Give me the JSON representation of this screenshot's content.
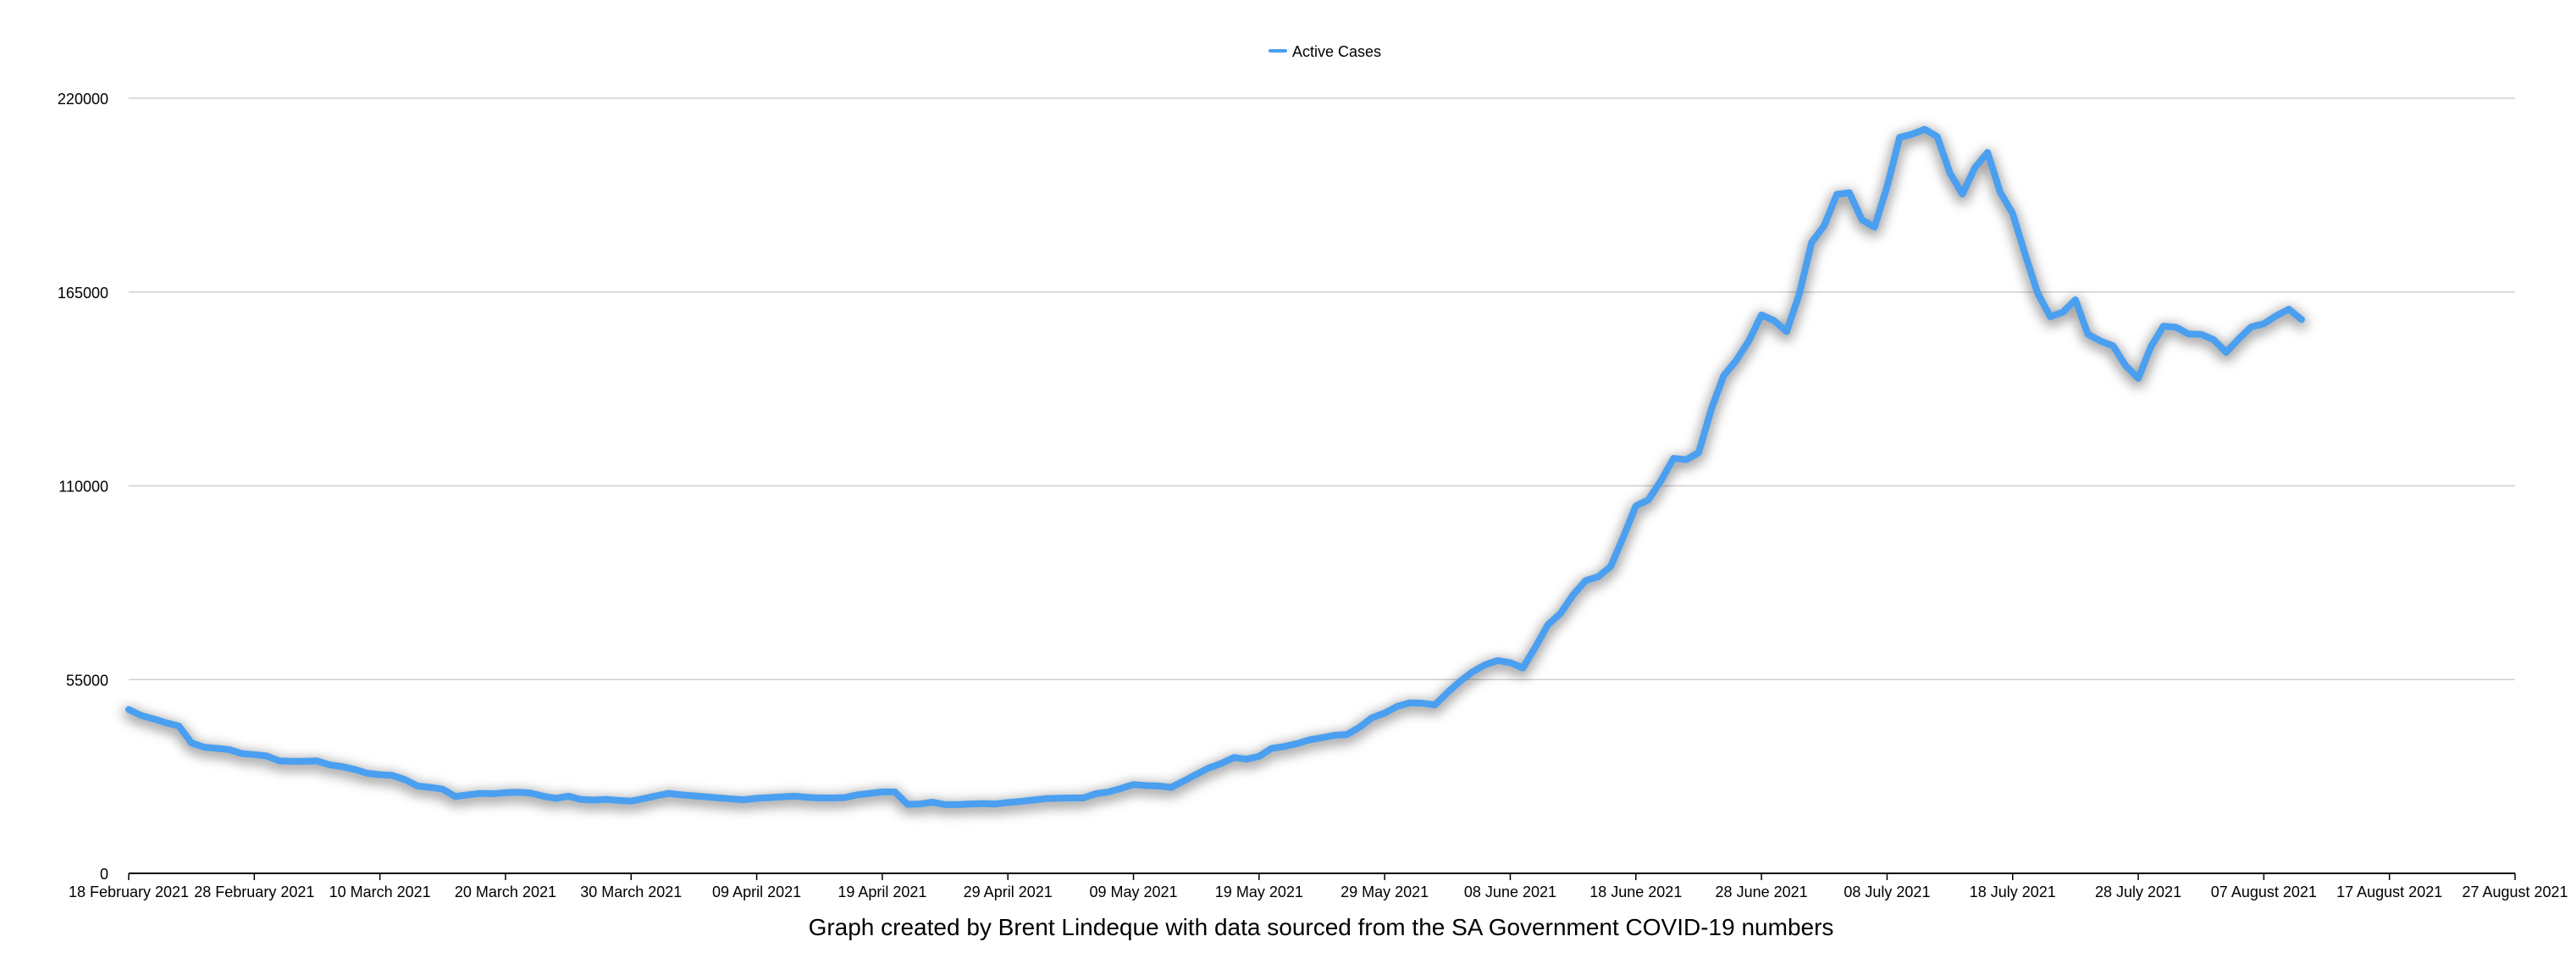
{
  "chart_data": {
    "type": "line",
    "title": "",
    "xlabel": "",
    "ylabel": "",
    "caption": "Graph created by Brent Lindeque with data sourced from the SA Government COVID-19 numbers",
    "legend_position": "top-center",
    "grid": true,
    "ylim": [
      0,
      220000
    ],
    "y_ticks": [
      0,
      55000,
      110000,
      165000,
      220000
    ],
    "y_tick_labels": [
      "0",
      "55000",
      "110000",
      "165000",
      "220000"
    ],
    "x_range": [
      "2021-02-18",
      "2021-08-27"
    ],
    "x_ticks": [
      "2021-02-18",
      "2021-02-28",
      "2021-03-10",
      "2021-03-20",
      "2021-03-30",
      "2021-04-09",
      "2021-04-19",
      "2021-04-29",
      "2021-05-09",
      "2021-05-19",
      "2021-05-29",
      "2021-06-08",
      "2021-06-18",
      "2021-06-28",
      "2021-07-08",
      "2021-07-18",
      "2021-07-28",
      "2021-08-07",
      "2021-08-17",
      "2021-08-27"
    ],
    "x_tick_labels": [
      "18 February 2021",
      "28 February 2021",
      "10 March 2021",
      "20 March 2021",
      "30 March 2021",
      "09 April 2021",
      "19 April 2021",
      "29 April 2021",
      "09 May 2021",
      "19 May 2021",
      "29 May 2021",
      "08 June 2021",
      "18 June 2021",
      "28 June 2021",
      "08 July 2021",
      "18 July 2021",
      "28 July 2021",
      "07 August 2021",
      "17 August 2021",
      "27 August 2021"
    ],
    "series": [
      {
        "name": "Active Cases",
        "color": "#4a9ff0",
        "points": [
          {
            "x": "2021-02-18",
            "y": 46500
          },
          {
            "x": "2021-02-19",
            "y": 44800
          },
          {
            "x": "2021-02-20",
            "y": 43800
          },
          {
            "x": "2021-02-21",
            "y": 42700
          },
          {
            "x": "2021-02-22",
            "y": 41800
          },
          {
            "x": "2021-02-23",
            "y": 37000
          },
          {
            "x": "2021-02-24",
            "y": 35800
          },
          {
            "x": "2021-02-25",
            "y": 35500
          },
          {
            "x": "2021-02-26",
            "y": 35100
          },
          {
            "x": "2021-02-27",
            "y": 34000
          },
          {
            "x": "2021-02-28",
            "y": 33700
          },
          {
            "x": "2021-03-01",
            "y": 33300
          },
          {
            "x": "2021-03-02",
            "y": 31900
          },
          {
            "x": "2021-03-03",
            "y": 31800
          },
          {
            "x": "2021-03-04",
            "y": 31800
          },
          {
            "x": "2021-03-05",
            "y": 31900
          },
          {
            "x": "2021-03-06",
            "y": 30800
          },
          {
            "x": "2021-03-07",
            "y": 30300
          },
          {
            "x": "2021-03-08",
            "y": 29500
          },
          {
            "x": "2021-03-09",
            "y": 28400
          },
          {
            "x": "2021-03-10",
            "y": 28000
          },
          {
            "x": "2021-03-11",
            "y": 27800
          },
          {
            "x": "2021-03-12",
            "y": 26600
          },
          {
            "x": "2021-03-13",
            "y": 24800
          },
          {
            "x": "2021-03-14",
            "y": 24400
          },
          {
            "x": "2021-03-15",
            "y": 23900
          },
          {
            "x": "2021-03-16",
            "y": 21800
          },
          {
            "x": "2021-03-17",
            "y": 22300
          },
          {
            "x": "2021-03-18",
            "y": 22700
          },
          {
            "x": "2021-03-19",
            "y": 22600
          },
          {
            "x": "2021-03-20",
            "y": 22900
          },
          {
            "x": "2021-03-21",
            "y": 23000
          },
          {
            "x": "2021-03-22",
            "y": 22800
          },
          {
            "x": "2021-03-23",
            "y": 21900
          },
          {
            "x": "2021-03-24",
            "y": 21300
          },
          {
            "x": "2021-03-25",
            "y": 21900
          },
          {
            "x": "2021-03-26",
            "y": 21000
          },
          {
            "x": "2021-03-27",
            "y": 20800
          },
          {
            "x": "2021-03-28",
            "y": 21000
          },
          {
            "x": "2021-03-29",
            "y": 20700
          },
          {
            "x": "2021-03-30",
            "y": 20500
          },
          {
            "x": "2021-03-31",
            "y": 21200
          },
          {
            "x": "2021-04-01",
            "y": 22000
          },
          {
            "x": "2021-04-02",
            "y": 22700
          },
          {
            "x": "2021-04-03",
            "y": 22300
          },
          {
            "x": "2021-04-04",
            "y": 22000
          },
          {
            "x": "2021-04-05",
            "y": 21700
          },
          {
            "x": "2021-04-06",
            "y": 21400
          },
          {
            "x": "2021-04-07",
            "y": 21100
          },
          {
            "x": "2021-04-08",
            "y": 20900
          },
          {
            "x": "2021-04-09",
            "y": 21300
          },
          {
            "x": "2021-04-10",
            "y": 21500
          },
          {
            "x": "2021-04-11",
            "y": 21700
          },
          {
            "x": "2021-04-12",
            "y": 21900
          },
          {
            "x": "2021-04-13",
            "y": 21600
          },
          {
            "x": "2021-04-14",
            "y": 21400
          },
          {
            "x": "2021-04-15",
            "y": 21400
          },
          {
            "x": "2021-04-16",
            "y": 21500
          },
          {
            "x": "2021-04-17",
            "y": 22300
          },
          {
            "x": "2021-04-18",
            "y": 22700
          },
          {
            "x": "2021-04-19",
            "y": 23100
          },
          {
            "x": "2021-04-20",
            "y": 23100
          },
          {
            "x": "2021-04-21",
            "y": 19600
          },
          {
            "x": "2021-04-22",
            "y": 19700
          },
          {
            "x": "2021-04-23",
            "y": 20200
          },
          {
            "x": "2021-04-24",
            "y": 19500
          },
          {
            "x": "2021-04-25",
            "y": 19500
          },
          {
            "x": "2021-04-26",
            "y": 19700
          },
          {
            "x": "2021-04-27",
            "y": 19800
          },
          {
            "x": "2021-04-28",
            "y": 19700
          },
          {
            "x": "2021-04-29",
            "y": 20100
          },
          {
            "x": "2021-04-30",
            "y": 20400
          },
          {
            "x": "2021-05-01",
            "y": 20800
          },
          {
            "x": "2021-05-02",
            "y": 21200
          },
          {
            "x": "2021-05-03",
            "y": 21300
          },
          {
            "x": "2021-05-04",
            "y": 21400
          },
          {
            "x": "2021-05-05",
            "y": 21400
          },
          {
            "x": "2021-05-06",
            "y": 22600
          },
          {
            "x": "2021-05-07",
            "y": 23100
          },
          {
            "x": "2021-05-08",
            "y": 24100
          },
          {
            "x": "2021-05-09",
            "y": 25200
          },
          {
            "x": "2021-05-10",
            "y": 24900
          },
          {
            "x": "2021-05-11",
            "y": 24800
          },
          {
            "x": "2021-05-12",
            "y": 24400
          },
          {
            "x": "2021-05-13",
            "y": 26200
          },
          {
            "x": "2021-05-14",
            "y": 28100
          },
          {
            "x": "2021-05-15",
            "y": 29900
          },
          {
            "x": "2021-05-16",
            "y": 31200
          },
          {
            "x": "2021-05-17",
            "y": 32900
          },
          {
            "x": "2021-05-18",
            "y": 32400
          },
          {
            "x": "2021-05-19",
            "y": 33200
          },
          {
            "x": "2021-05-20",
            "y": 35500
          },
          {
            "x": "2021-05-21",
            "y": 36000
          },
          {
            "x": "2021-05-22",
            "y": 36800
          },
          {
            "x": "2021-05-23",
            "y": 37900
          },
          {
            "x": "2021-05-24",
            "y": 38500
          },
          {
            "x": "2021-05-25",
            "y": 39200
          },
          {
            "x": "2021-05-26",
            "y": 39400
          },
          {
            "x": "2021-05-27",
            "y": 41500
          },
          {
            "x": "2021-05-28",
            "y": 44200
          },
          {
            "x": "2021-05-29",
            "y": 45500
          },
          {
            "x": "2021-05-30",
            "y": 47400
          },
          {
            "x": "2021-05-31",
            "y": 48400
          },
          {
            "x": "2021-06-01",
            "y": 48300
          },
          {
            "x": "2021-06-02",
            "y": 47800
          },
          {
            "x": "2021-06-03",
            "y": 51300
          },
          {
            "x": "2021-06-04",
            "y": 54500
          },
          {
            "x": "2021-06-05",
            "y": 57200
          },
          {
            "x": "2021-06-06",
            "y": 59200
          },
          {
            "x": "2021-06-07",
            "y": 60400
          },
          {
            "x": "2021-06-08",
            "y": 59800
          },
          {
            "x": "2021-06-09",
            "y": 58300
          },
          {
            "x": "2021-06-10",
            "y": 64200
          },
          {
            "x": "2021-06-11",
            "y": 70600
          },
          {
            "x": "2021-06-12",
            "y": 73800
          },
          {
            "x": "2021-06-13",
            "y": 79000
          },
          {
            "x": "2021-06-14",
            "y": 83100
          },
          {
            "x": "2021-06-15",
            "y": 84200
          },
          {
            "x": "2021-06-16",
            "y": 87100
          },
          {
            "x": "2021-06-17",
            "y": 95500
          },
          {
            "x": "2021-06-18",
            "y": 104300
          },
          {
            "x": "2021-06-19",
            "y": 106000
          },
          {
            "x": "2021-06-20",
            "y": 111500
          },
          {
            "x": "2021-06-21",
            "y": 117800
          },
          {
            "x": "2021-06-22",
            "y": 117400
          },
          {
            "x": "2021-06-23",
            "y": 119400
          },
          {
            "x": "2021-06-24",
            "y": 131700
          },
          {
            "x": "2021-06-25",
            "y": 141300
          },
          {
            "x": "2021-06-26",
            "y": 145600
          },
          {
            "x": "2021-06-27",
            "y": 151200
          },
          {
            "x": "2021-06-28",
            "y": 158500
          },
          {
            "x": "2021-06-29",
            "y": 156900
          },
          {
            "x": "2021-06-30",
            "y": 153800
          },
          {
            "x": "2021-07-01",
            "y": 164300
          },
          {
            "x": "2021-07-02",
            "y": 179100
          },
          {
            "x": "2021-07-03",
            "y": 183900
          },
          {
            "x": "2021-07-04",
            "y": 192700
          },
          {
            "x": "2021-07-05",
            "y": 193200
          },
          {
            "x": "2021-07-06",
            "y": 185500
          },
          {
            "x": "2021-07-07",
            "y": 183400
          },
          {
            "x": "2021-07-08",
            "y": 194900
          },
          {
            "x": "2021-07-09",
            "y": 208900
          },
          {
            "x": "2021-07-10",
            "y": 209800
          },
          {
            "x": "2021-07-11",
            "y": 211200
          },
          {
            "x": "2021-07-12",
            "y": 209100
          },
          {
            "x": "2021-07-13",
            "y": 198800
          },
          {
            "x": "2021-07-14",
            "y": 192800
          },
          {
            "x": "2021-07-15",
            "y": 200300
          },
          {
            "x": "2021-07-16",
            "y": 204600
          },
          {
            "x": "2021-07-17",
            "y": 193400
          },
          {
            "x": "2021-07-18",
            "y": 187300
          },
          {
            "x": "2021-07-19",
            "y": 175600
          },
          {
            "x": "2021-07-20",
            "y": 164600
          },
          {
            "x": "2021-07-21",
            "y": 158000
          },
          {
            "x": "2021-07-22",
            "y": 159300
          },
          {
            "x": "2021-07-23",
            "y": 162800
          },
          {
            "x": "2021-07-24",
            "y": 153000
          },
          {
            "x": "2021-07-25",
            "y": 151100
          },
          {
            "x": "2021-07-26",
            "y": 149700
          },
          {
            "x": "2021-07-27",
            "y": 144100
          },
          {
            "x": "2021-07-28",
            "y": 140500
          },
          {
            "x": "2021-07-29",
            "y": 149400
          },
          {
            "x": "2021-07-30",
            "y": 155300
          },
          {
            "x": "2021-07-31",
            "y": 155000
          },
          {
            "x": "2021-08-01",
            "y": 153100
          },
          {
            "x": "2021-08-02",
            "y": 153000
          },
          {
            "x": "2021-08-03",
            "y": 151500
          },
          {
            "x": "2021-08-04",
            "y": 147900
          },
          {
            "x": "2021-08-05",
            "y": 151700
          },
          {
            "x": "2021-08-06",
            "y": 155100
          },
          {
            "x": "2021-08-07",
            "y": 156000
          },
          {
            "x": "2021-08-08",
            "y": 158300
          },
          {
            "x": "2021-08-09",
            "y": 160100
          },
          {
            "x": "2021-08-10",
            "y": 157200
          }
        ]
      }
    ]
  }
}
